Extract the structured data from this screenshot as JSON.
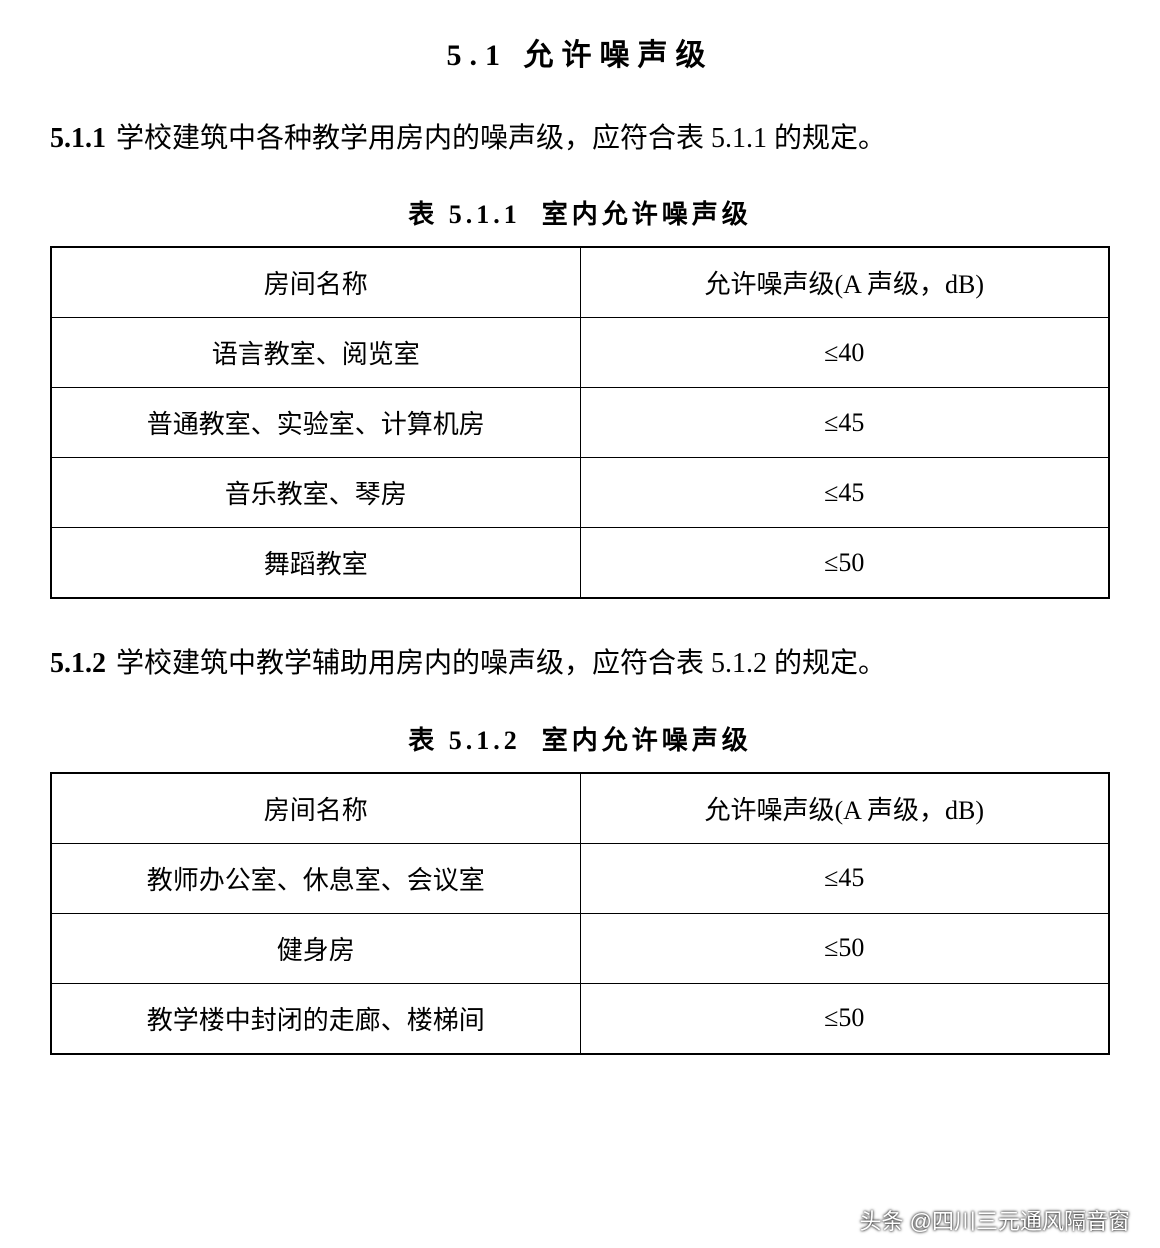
{
  "section": {
    "number": "5.1",
    "title": "允许噪声级"
  },
  "clause1": {
    "number": "5.1.1",
    "text": "学校建筑中各种教学用房内的噪声级，应符合表 5.1.1 的规定。"
  },
  "table1": {
    "caption_prefix": "表 5.1.1",
    "caption_title": "室内允许噪声级",
    "columns": [
      "房间名称",
      "允许噪声级(A 声级，dB)"
    ],
    "rows": [
      [
        "语言教室、阅览室",
        "≤40"
      ],
      [
        "普通教室、实验室、计算机房",
        "≤45"
      ],
      [
        "音乐教室、琴房",
        "≤45"
      ],
      [
        "舞蹈教室",
        "≤50"
      ]
    ],
    "border_color": "#000000"
  },
  "clause2": {
    "number": "5.1.2",
    "text": "学校建筑中教学辅助用房内的噪声级，应符合表 5.1.2 的规定。"
  },
  "table2": {
    "caption_prefix": "表 5.1.2",
    "caption_title": "室内允许噪声级",
    "columns": [
      "房间名称",
      "允许噪声级(A 声级，dB)"
    ],
    "rows": [
      [
        "教师办公室、休息室、会议室",
        "≤45"
      ],
      [
        "健身房",
        "≤50"
      ],
      [
        "教学楼中封闭的走廊、楼梯间",
        "≤50"
      ]
    ],
    "border_color": "#000000"
  },
  "watermark": {
    "text": "头条 @四川三元通风隔音窗"
  },
  "styling": {
    "background_color": "#ffffff",
    "text_color": "#000000",
    "title_fontsize": 30,
    "body_fontsize": 28,
    "table_fontsize": 26,
    "caption_fontsize": 26
  }
}
